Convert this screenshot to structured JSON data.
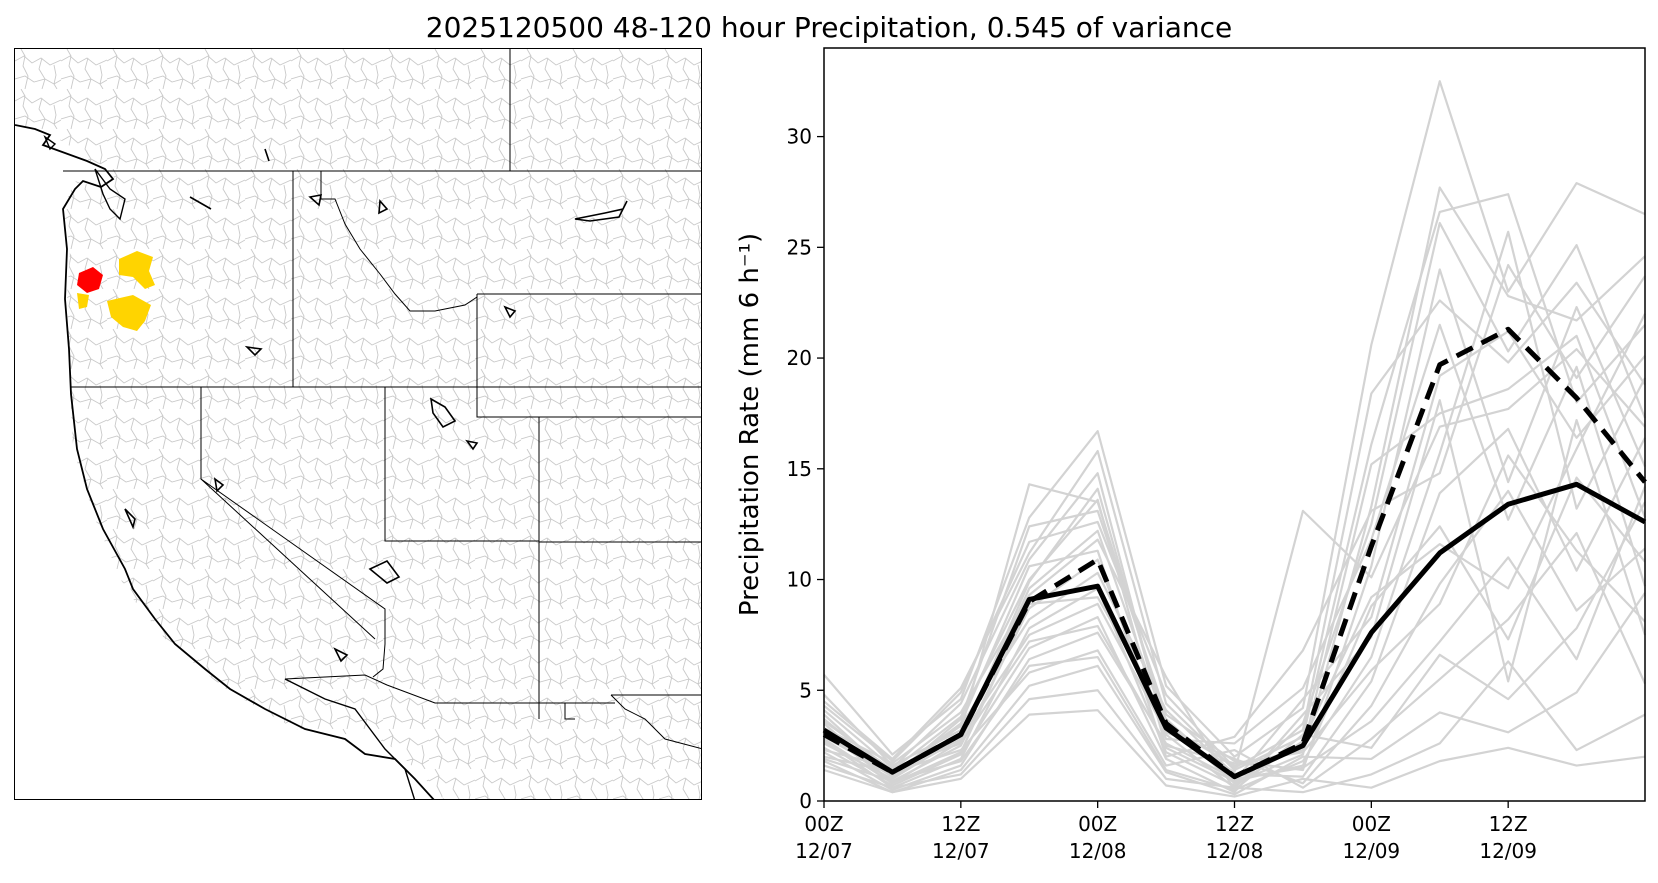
{
  "figure": {
    "title": "2025120500 48-120 hour Precipitation, 0.545 of variance"
  },
  "map": {
    "region": "Western United States",
    "highlight_colors": {
      "high": "#ff0000",
      "moderate": "#ffd400"
    },
    "border_color": "#000000",
    "basin_line_color": "#bdbdbd"
  },
  "chart_data": {
    "type": "line",
    "ylabel": "Precipitation Rate (mm 6 h⁻¹)",
    "ylim": [
      0,
      34
    ],
    "yticks": [
      0,
      5,
      10,
      15,
      20,
      25,
      30
    ],
    "x": [
      0,
      1,
      2,
      3,
      4,
      5,
      6,
      7,
      8,
      9,
      10,
      11,
      12
    ],
    "xlim": [
      0,
      12
    ],
    "xtick_positions": [
      0,
      2,
      4,
      6,
      8,
      10
    ],
    "xtick_labels": [
      [
        "00Z",
        "12/07"
      ],
      [
        "12Z",
        "12/07"
      ],
      [
        "00Z",
        "12/08"
      ],
      [
        "12Z",
        "12/08"
      ],
      [
        "00Z",
        "12/09"
      ],
      [
        "12Z",
        "12/09"
      ]
    ],
    "grid": false,
    "series": [
      {
        "style": "solid-black",
        "color": "#000000",
        "values": [
          3.2,
          1.3,
          3.0,
          9.1,
          9.7,
          3.3,
          1.1,
          2.5,
          7.6,
          11.2,
          13.4,
          14.3,
          12.6
        ]
      },
      {
        "style": "dashed-black",
        "color": "#000000",
        "values": [
          3.0,
          1.3,
          3.0,
          9.0,
          10.9,
          3.5,
          1.1,
          2.6,
          11.5,
          19.7,
          21.3,
          18.2,
          14.4
        ]
      }
    ],
    "ensemble_color": "#d3d3d3",
    "ensemble": [
      [
        5.7,
        2.1,
        4.6,
        12.8,
        16.7,
        5.2,
        2.0,
        4.2,
        20.6,
        32.5,
        23.0,
        27.9,
        26.5
      ],
      [
        4.8,
        1.6,
        3.2,
        14.3,
        13.5,
        3.6,
        0.8,
        2.1,
        13.3,
        27.7,
        22.8,
        21.7,
        24.6
      ],
      [
        4.5,
        1.9,
        5.1,
        11.2,
        15.8,
        4.4,
        1.4,
        2.9,
        16.1,
        26.6,
        27.4,
        18.0,
        21.5
      ],
      [
        4.1,
        1.5,
        4.4,
        10.9,
        14.8,
        3.0,
        0.6,
        3.5,
        12.5,
        26.1,
        20.3,
        25.1,
        17.3
      ],
      [
        3.9,
        1.1,
        3.7,
        12.4,
        13.1,
        3.9,
        1.8,
        1.4,
        10.6,
        24.0,
        14.4,
        22.3,
        15.1
      ],
      [
        3.6,
        1.4,
        3.8,
        10.0,
        13.6,
        2.4,
        0.9,
        4.6,
        8.3,
        19.2,
        21.2,
        16.4,
        20.1
      ],
      [
        3.5,
        0.8,
        2.7,
        9.6,
        12.2,
        3.4,
        1.6,
        2.3,
        15.2,
        17.5,
        18.6,
        21.0,
        12.8
      ],
      [
        3.3,
        1.7,
        4.0,
        9.3,
        11.8,
        5.6,
        0.5,
        1.8,
        6.5,
        15.7,
        25.7,
        13.2,
        19.1
      ],
      [
        3.1,
        0.9,
        2.5,
        8.7,
        10.9,
        2.8,
        2.6,
        5.1,
        11.8,
        21.5,
        12.7,
        19.6,
        9.7
      ],
      [
        2.9,
        1.2,
        3.4,
        8.2,
        10.3,
        4.1,
        1.2,
        1.1,
        5.4,
        13.9,
        16.8,
        10.4,
        16.4
      ],
      [
        2.7,
        0.6,
        1.9,
        7.8,
        9.6,
        2.2,
        0.7,
        2.7,
        9.2,
        11.6,
        9.6,
        15.9,
        22.0
      ],
      [
        2.6,
        1.0,
        2.9,
        7.5,
        8.9,
        3.1,
        1.9,
        0.8,
        4.3,
        9.8,
        14.0,
        8.6,
        11.4
      ],
      [
        2.4,
        0.7,
        2.1,
        6.9,
        8.3,
        1.9,
        0.4,
        3.9,
        7.4,
        18.1,
        5.4,
        17.2,
        7.5
      ],
      [
        2.2,
        0.5,
        1.6,
        6.4,
        7.6,
        2.6,
        1.0,
        1.5,
        3.6,
        7.2,
        11.0,
        6.4,
        14.2
      ],
      [
        2.0,
        1.3,
        2.3,
        5.8,
        6.8,
        1.6,
        2.3,
        0.6,
        2.8,
        5.5,
        8.2,
        12.1,
        5.3
      ],
      [
        1.8,
        0.4,
        1.4,
        5.2,
        6.1,
        1.3,
        0.3,
        2.0,
        1.9,
        4.0,
        3.1,
        4.9,
        9.4
      ],
      [
        1.6,
        0.6,
        1.2,
        4.6,
        5.0,
        1.0,
        0.6,
        0.4,
        1.2,
        2.6,
        6.3,
        2.3,
        3.9
      ],
      [
        1.4,
        0.4,
        1.0,
        3.9,
        4.1,
        0.7,
        0.2,
        1.0,
        0.6,
        1.8,
        2.4,
        1.6,
        2.0
      ],
      [
        4.3,
        1.8,
        4.9,
        11.7,
        12.6,
        4.8,
        1.5,
        3.2,
        18.4,
        22.6,
        19.8,
        23.4,
        18.8
      ],
      [
        3.7,
        1.2,
        3.5,
        10.6,
        11.3,
        2.0,
        2.9,
        6.8,
        13.1,
        14.8,
        24.2,
        19.1,
        23.7
      ],
      [
        2.8,
        0.8,
        2.2,
        8.9,
        9.2,
        3.7,
        0.9,
        1.6,
        8.8,
        12.4,
        7.3,
        14.6,
        10.8
      ],
      [
        2.3,
        1.5,
        2.6,
        7.2,
        7.9,
        2.5,
        1.7,
        2.2,
        5.9,
        8.9,
        15.6,
        11.3,
        8.1
      ],
      [
        1.9,
        0.9,
        1.8,
        6.1,
        6.5,
        1.4,
        0.5,
        3.0,
        2.4,
        6.6,
        4.6,
        7.8,
        13.5
      ],
      [
        3.0,
        1.1,
        2.8,
        9.9,
        14.1,
        3.2,
        1.3,
        13.1,
        10.1,
        16.9,
        17.7,
        20.4,
        16.9
      ]
    ]
  }
}
